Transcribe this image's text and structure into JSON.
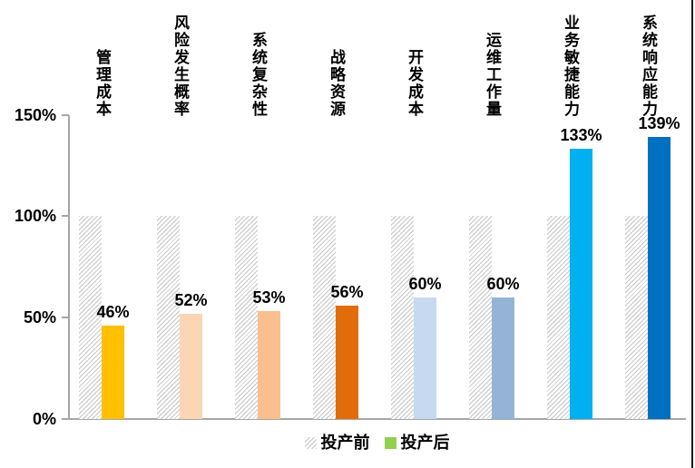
{
  "chart_data": {
    "type": "bar",
    "categories": [
      "管理成本",
      "风险发生概率",
      "系统复杂性",
      "战略资源",
      "开发成本",
      "运维工作量",
      "业务敏捷能力",
      "系统响应能力"
    ],
    "series": [
      {
        "name": "投产前",
        "values": [
          100,
          100,
          100,
          100,
          100,
          100,
          100,
          100
        ],
        "style": "diagonal-hatch",
        "hatch_line_color": "#C6C6C6"
      },
      {
        "name": "投产后",
        "values": [
          46,
          52,
          53,
          56,
          60,
          60,
          133,
          139
        ],
        "colors": [
          "#FFC000",
          "#FCD5B4",
          "#FABF8F",
          "#E36C0A",
          "#C6D9F1",
          "#95B3D7",
          "#00B0F0",
          "#0070C0"
        ]
      }
    ],
    "data_labels": [
      "46%",
      "52%",
      "53%",
      "56%",
      "60%",
      "60%",
      "133%",
      "139%"
    ],
    "y_axis": {
      "ticks": [
        "0%",
        "50%",
        "100%",
        "150%"
      ],
      "ylim": [
        0,
        150
      ]
    },
    "grid": false,
    "legend_position": "bottom",
    "legend_after_swatch_color": "#92D050",
    "axis_color": "#A6A6A6"
  }
}
